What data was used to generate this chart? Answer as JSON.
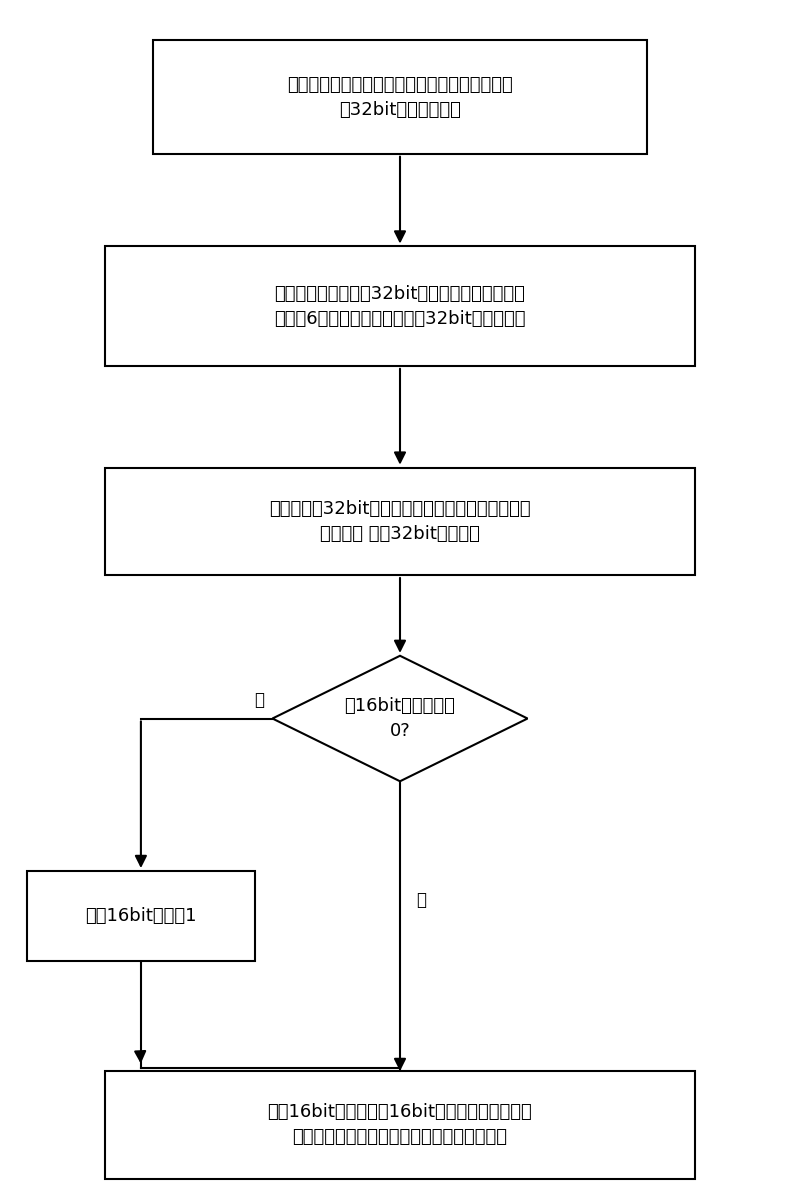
{
  "bg_color": "#ffffff",
  "box_color": "#ffffff",
  "box_edge_color": "#000000",
  "arrow_color": "#000000",
  "text_color": "#000000",
  "figsize": [
    8.0,
    11.98
  ],
  "dpi": 100,
  "box1_text": "将相邻两列的像素点的亮度値两两组合形成各具\n有32bit的无符号数据",
  "box2_text": "基于所形成的各具有32bit的无符号数据，进行列\n方向的6阶滤波，以获得至少䌠32bit位的中间値",
  "box3_text": "将至少・・32bit位的中间値分别加上一预设値，以\n获得至少 新的32bit位的数据",
  "diamond_text": "內16bit位数据小于\n0?",
  "box4_text": "将陀16bit数据加1",
  "box5_text": "将陀16bit位数据和內16bit位数据或者分别移位\n后，获得相应列内插点亮度値；或者予以缓存",
  "label_yes": "是",
  "label_no": "否",
  "fontsize": 13,
  "label_fontsize": 12
}
